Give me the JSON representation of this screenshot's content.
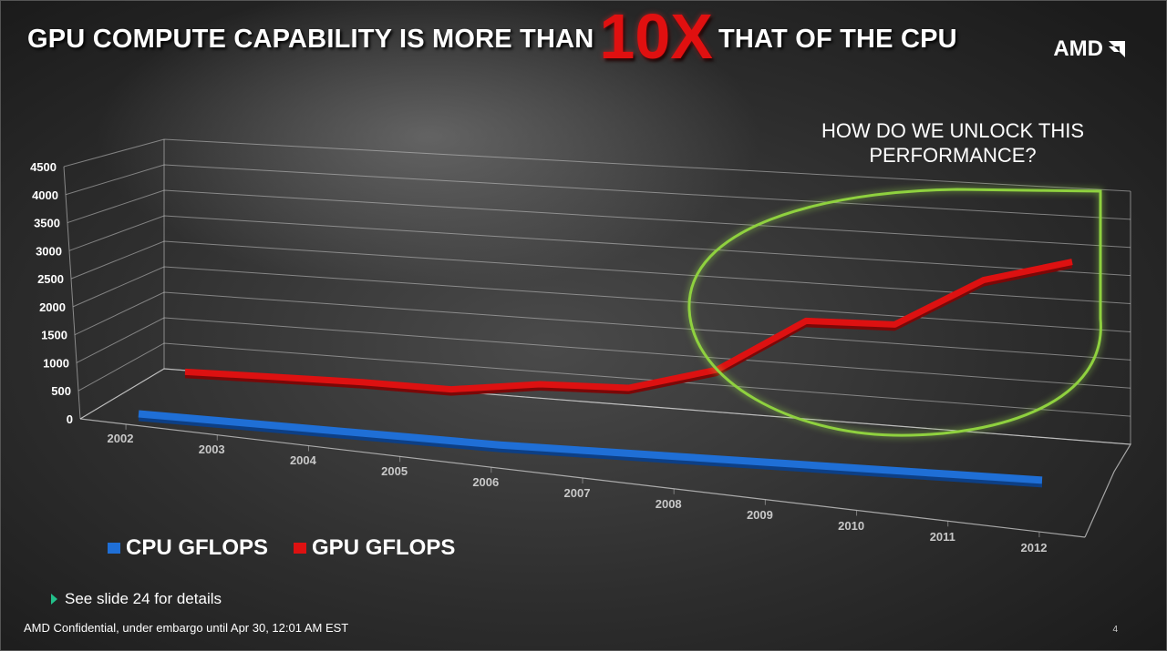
{
  "title": {
    "part1": "GPU COMPUTE CAPABILITY IS MORE THAN",
    "highlight": "10X",
    "part2": "THAT OF THE CPU"
  },
  "logo": {
    "text": "AMD",
    "icon": "amd-arrow-icon"
  },
  "callout": {
    "line1": "HOW DO WE UNLOCK THIS",
    "line2": "PERFORMANCE?"
  },
  "bullet": {
    "text": "See slide 24 for details",
    "icon": "triangle-bullet-icon"
  },
  "footer": {
    "text": "AMD  Confidential, under embargo until Apr 30, 12:01 AM EST",
    "page": "4"
  },
  "colors": {
    "cpu": "#1f6fd6",
    "gpu": "#dd1111",
    "highlight": "#e01010",
    "callout_ring": "#8fd13f"
  },
  "chart_data": {
    "type": "line",
    "style": "3d",
    "categories": [
      "2002",
      "2003",
      "2004",
      "2005",
      "2006",
      "2007",
      "2008",
      "2009",
      "2010",
      "2011",
      "2012"
    ],
    "yticks": [
      "0",
      "500",
      "1000",
      "1500",
      "2000",
      "2500",
      "3000",
      "3500",
      "4000",
      "4500"
    ],
    "ylim": [
      0,
      4500
    ],
    "grid": true,
    "legend_position": "bottom-left",
    "series": [
      {
        "name": "CPU GFLOPS",
        "color": "#1f6fd6",
        "values": [
          10,
          20,
          30,
          40,
          50,
          100,
          150,
          200,
          250,
          300,
          350
        ]
      },
      {
        "name": "GPU GFLOPS",
        "color": "#dd1111",
        "values": [
          450,
          420,
          380,
          300,
          500,
          500,
          1000,
          2200,
          2200,
          3300,
          3800
        ]
      }
    ]
  }
}
